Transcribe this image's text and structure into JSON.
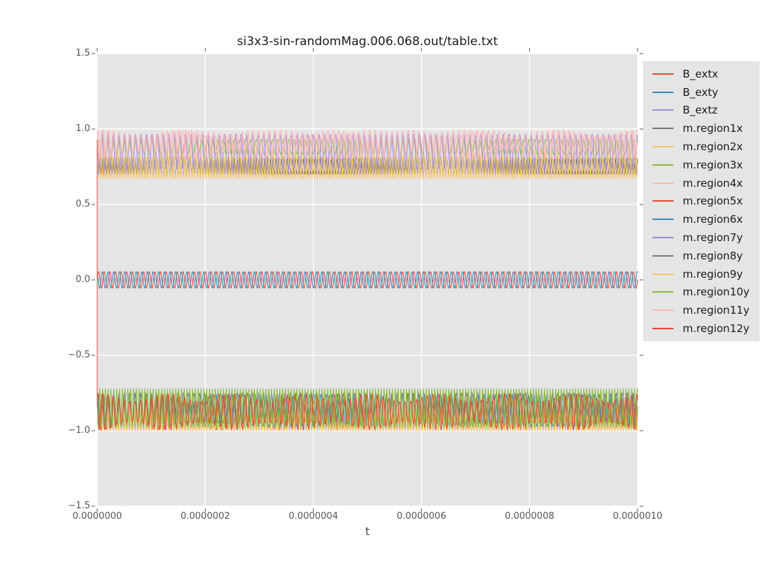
{
  "chart_data": {
    "type": "line",
    "title": "si3x3-sin-randomMag.006.068.out/table.txt",
    "xlabel": "t",
    "ylabel": "",
    "xlim": [
      0,
      1e-06
    ],
    "ylim": [
      -1.5,
      1.5
    ],
    "x_tick_labels": [
      "0.0000000",
      "0.0000002",
      "0.0000004",
      "0.0000006",
      "0.0000008",
      "0.0000010"
    ],
    "y_tick_labels": [
      "1.5",
      "1.0",
      "0.5",
      "0.0",
      "−0.5",
      "−1.0",
      "−1.5"
    ],
    "grid": true,
    "legend_position": "outside-right",
    "palette": {
      "figure_bg": "#ffffff",
      "plot_bg": "#e5e5e5",
      "grid_color": "#ffffff",
      "tick_color": "#555555",
      "tick_text": "#555555",
      "title_text": "#1a1a1a",
      "legend_bg": "#e5e5e5"
    },
    "series": [
      {
        "name": "B_extx",
        "color": "#e24a33",
        "waveform": "sine",
        "center": 0,
        "amplitude": 0.055,
        "cycles": 96,
        "phase": 0.0
      },
      {
        "name": "B_exty",
        "color": "#348abd",
        "waveform": "sine",
        "center": 0,
        "amplitude": 0.055,
        "cycles": 96,
        "phase": 2.1
      },
      {
        "name": "B_extz",
        "color": "#988ed5",
        "waveform": "flat",
        "center": 0.0
      },
      {
        "name": "m.region1x",
        "color": "#777777",
        "waveform": "spikes-down",
        "base": 0.805,
        "depth": 0.105,
        "cycles": 98,
        "power": 1.6,
        "phase": 0.5
      },
      {
        "name": "m.region2x",
        "color": "#fbc15e",
        "waveform": "spikes-down",
        "base": 0.82,
        "depth": 0.15,
        "cycles": 97,
        "power": 2.2,
        "phase": 1.4
      },
      {
        "name": "m.region3x",
        "color": "#8eba42",
        "waveform": "sine",
        "center": 0.88,
        "amplitude": 0.05,
        "cycles": 99,
        "phase": 0.9
      },
      {
        "name": "m.region4x",
        "color": "#ffb5b8",
        "waveform": "sine",
        "center": 0.895,
        "amplitude": 0.1,
        "cycles": 101,
        "phase": 0.8,
        "mod": 7
      },
      {
        "name": "m.region5x",
        "color": "#e24a33",
        "waveform": "sine",
        "center": -0.875,
        "amplitude": 0.12,
        "cycles": 103,
        "phase": 0.3,
        "mod": 9
      },
      {
        "name": "m.region6x",
        "color": "#348abd",
        "waveform": "sine",
        "center": -0.865,
        "amplitude": 0.105,
        "cycles": 99,
        "phase": 1.8
      },
      {
        "name": "m.region7y",
        "color": "#988ed5",
        "waveform": "sine",
        "center": 0.85,
        "amplitude": 0.115,
        "cycles": 97,
        "phase": 2.6
      },
      {
        "name": "m.region8y",
        "color": "#777777",
        "waveform": "sine",
        "center": -0.85,
        "amplitude": 0.1,
        "cycles": 101,
        "phase": 1.1
      },
      {
        "name": "m.region9y",
        "color": "#fbc15e",
        "waveform": "spikes-up",
        "base": -1.0,
        "height": 0.12,
        "cycles": 98,
        "power": 2.5,
        "phase": 0.7
      },
      {
        "name": "m.region10y",
        "color": "#8eba42",
        "waveform": "spikes-up",
        "base": -0.98,
        "height": 0.26,
        "cycles": 96,
        "power": 2.0,
        "phase": 1.9
      },
      {
        "name": "m.region11y",
        "color": "#ffb5b8",
        "waveform": "sine",
        "center": 0.9,
        "amplitude": 0.095,
        "cycles": 97,
        "phase": 2.0,
        "mod": 6
      },
      {
        "name": "m.region12y",
        "color": "#e24a33",
        "waveform": "sine",
        "center": -0.875,
        "amplitude": 0.12,
        "cycles": 98,
        "phase": 2.4,
        "mod": 8,
        "transient_from": 0.93
      }
    ]
  }
}
